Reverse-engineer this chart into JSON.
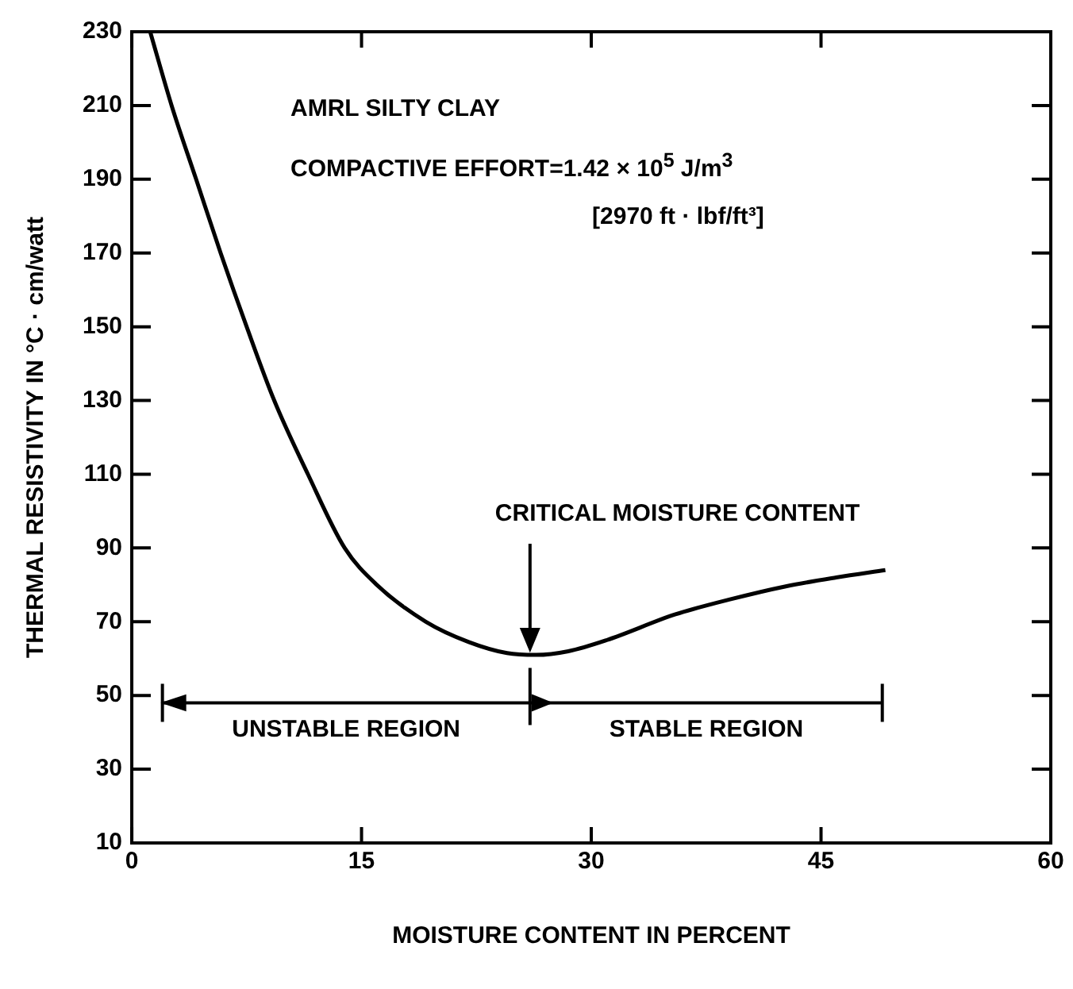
{
  "chart_data": {
    "type": "line",
    "xlabel": "MOISTURE CONTENT IN PERCENT",
    "ylabel": "THERMAL RESISTIVITY IN °C · cm/watt",
    "x": [
      1.2,
      2.6,
      4.2,
      5.8,
      7.5,
      9.3,
      11.5,
      13.9,
      16,
      19.2,
      22,
      24.5,
      26.4,
      28.5,
      31,
      35.5,
      39,
      42.7,
      46,
      49.2
    ],
    "series": [
      {
        "color": "#000000",
        "values": [
          230,
          210,
          190,
          170,
          150,
          130,
          110,
          90,
          80,
          70,
          64.5,
          61.5,
          61,
          62,
          65,
          72,
          76,
          79.6,
          82,
          84
        ]
      }
    ],
    "xlim": [
      0,
      60
    ],
    "xticks": [
      0,
      15,
      30,
      45,
      60
    ],
    "ylim": [
      10,
      230
    ],
    "yticks": [
      10,
      30,
      50,
      70,
      90,
      110,
      130,
      150,
      170,
      190,
      210,
      230
    ],
    "grid": false,
    "legend": false,
    "marker": "none",
    "line_style": "solid",
    "annotations": [
      "AMRL SILTY CLAY",
      "COMPACTIVE EFFORT=1.42 × 10$^{5}$ J/m$^{3}$",
      "[2970 ft · lbf/ft³]",
      "CRITICAL MOISTURE CONTENT",
      "UNSTABLE REGION",
      "STABLE REGION"
    ]
  }
}
